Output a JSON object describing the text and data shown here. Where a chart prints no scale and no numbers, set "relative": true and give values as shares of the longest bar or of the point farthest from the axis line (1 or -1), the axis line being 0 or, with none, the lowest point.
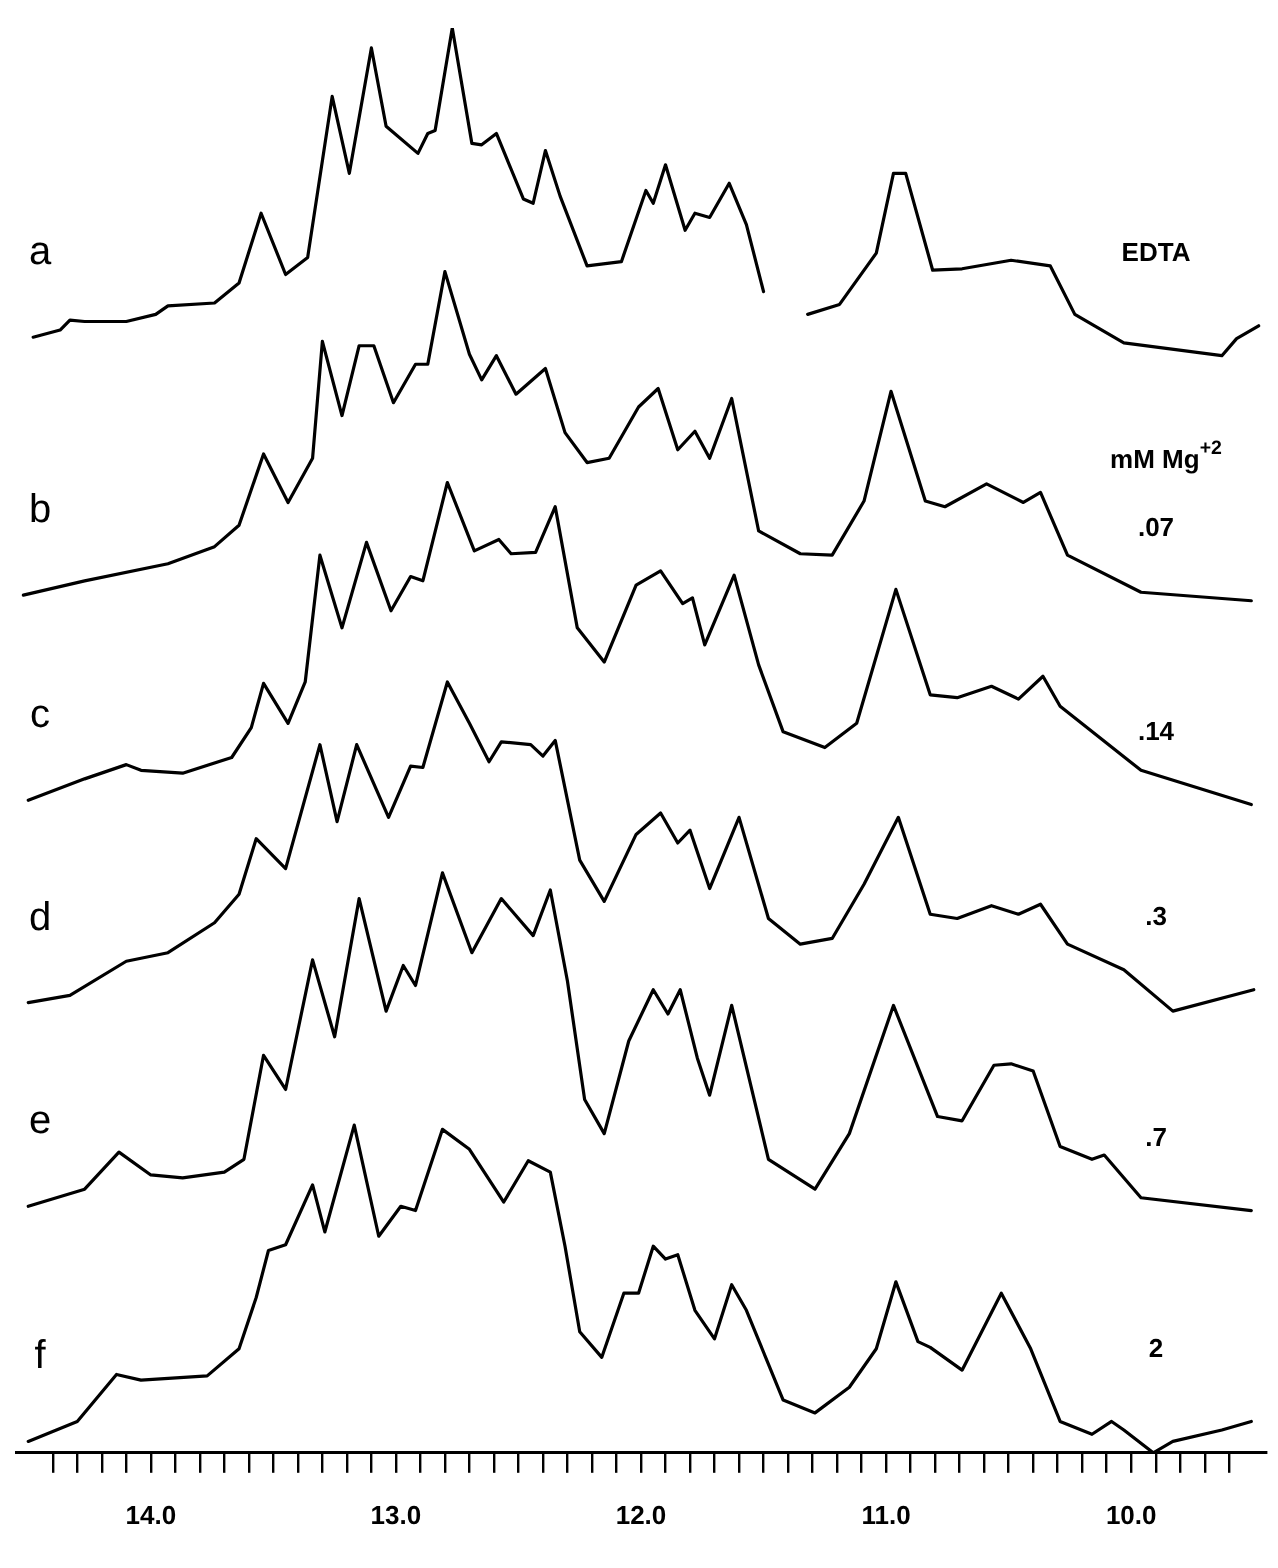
{
  "chart_data": {
    "type": "line",
    "relative": true,
    "legend": false,
    "grid": false,
    "marker": "none",
    "line_style": "solid",
    "tick_labels": "x",
    "xlim": [
      14.55,
      9.45
    ],
    "xticks": [
      {
        "value": 14.4,
        "label": null
      },
      {
        "value": 14.3,
        "label": null
      },
      {
        "value": 14.2,
        "label": null
      },
      {
        "value": 14.1,
        "label": null
      },
      {
        "value": 14,
        "label": "14.0"
      },
      {
        "value": 13.9,
        "label": null
      },
      {
        "value": 13.8,
        "label": null
      },
      {
        "value": 13.7,
        "label": null
      },
      {
        "value": 13.6,
        "label": null
      },
      {
        "value": 13.5,
        "label": null
      },
      {
        "value": 13.4,
        "label": null
      },
      {
        "value": 13.3,
        "label": null
      },
      {
        "value": 13.2,
        "label": null
      },
      {
        "value": 13.1,
        "label": null
      },
      {
        "value": 13,
        "label": "13.0"
      },
      {
        "value": 12.9,
        "label": null
      },
      {
        "value": 12.8,
        "label": null
      },
      {
        "value": 12.7,
        "label": null
      },
      {
        "value": 12.6,
        "label": null
      },
      {
        "value": 12.5,
        "label": null
      },
      {
        "value": 12.4,
        "label": null
      },
      {
        "value": 12.3,
        "label": null
      },
      {
        "value": 12.2,
        "label": null
      },
      {
        "value": 12.1,
        "label": null
      },
      {
        "value": 12,
        "label": "12.0"
      },
      {
        "value": 11.9,
        "label": null
      },
      {
        "value": 11.8,
        "label": null
      },
      {
        "value": 11.7,
        "label": null
      },
      {
        "value": 11.6,
        "label": null
      },
      {
        "value": 11.5,
        "label": null
      },
      {
        "value": 11.4,
        "label": null
      },
      {
        "value": 11.3,
        "label": null
      },
      {
        "value": 11.2,
        "label": null
      },
      {
        "value": 11.1,
        "label": null
      },
      {
        "value": 11,
        "label": "11.0"
      },
      {
        "value": 10.9,
        "label": null
      },
      {
        "value": 10.8,
        "label": null
      },
      {
        "value": 10.7,
        "label": null
      },
      {
        "value": 10.6,
        "label": null
      },
      {
        "value": 10.5,
        "label": null
      },
      {
        "value": 10.4,
        "label": null
      },
      {
        "value": 10.3,
        "label": null
      },
      {
        "value": 10.2,
        "label": null
      },
      {
        "value": 10.1,
        "label": null
      },
      {
        "value": 10,
        "label": "10.0"
      },
      {
        "value": 9.9,
        "label": null
      },
      {
        "value": 9.8,
        "label": null
      },
      {
        "value": 9.7,
        "label": null
      },
      {
        "value": 9.6,
        "label": null
      }
    ],
    "series": [
      {
        "name": "a",
        "color": "#000000",
        "x": [
          14.48,
          14.37,
          14.33,
          14.27,
          14.1,
          13.98,
          13.93,
          13.74,
          13.64,
          13.55,
          13.45,
          13.36,
          13.26,
          13.19,
          13.1,
          13.04,
          12.91,
          12.87,
          12.84,
          12.77,
          12.69,
          12.65,
          12.59,
          12.48,
          12.44,
          12.39,
          12.33,
          12.22,
          12.08,
          11.98,
          11.95,
          11.9,
          11.82,
          11.78,
          11.72,
          11.64,
          11.57,
          11.5,
          11.4,
          11.32,
          11.19,
          11.04,
          10.97,
          10.92,
          10.81,
          10.69,
          10.49,
          10.33,
          10.23,
          10.03,
          9.63,
          9.57,
          9.48
        ],
        "values": [
          0.783,
          0.788,
          0.795,
          0.794,
          0.794,
          0.799,
          0.805,
          0.807,
          0.821,
          0.87,
          0.827,
          0.839,
          0.952,
          0.898,
          0.986,
          0.931,
          0.912,
          0.926,
          0.928,
          1,
          0.919,
          0.918,
          0.926,
          0.88,
          0.877,
          0.914,
          0.882,
          0.833,
          0.836,
          0.886,
          0.877,
          0.904,
          0.858,
          0.87,
          0.867,
          0.891,
          0.862,
          0.815,
          null,
          0.799,
          0.806,
          0.842,
          0.898,
          0.898,
          0.83,
          0.831,
          0.837,
          0.833,
          0.799,
          0.779,
          0.77,
          0.782,
          0.791
        ]
      },
      {
        "name": "b",
        "color": "#000000",
        "x": [
          14.52,
          14.27,
          13.93,
          13.74,
          13.64,
          13.54,
          13.44,
          13.34,
          13.3,
          13.22,
          13.15,
          13.09,
          13.01,
          12.92,
          12.87,
          12.8,
          12.7,
          12.65,
          12.59,
          12.51,
          12.39,
          12.31,
          12.22,
          12.13,
          12.01,
          11.93,
          11.85,
          11.78,
          11.72,
          11.63,
          11.52,
          11.35,
          11.22,
          11.09,
          10.98,
          10.84,
          10.76,
          10.59,
          10.44,
          10.37,
          10.26,
          9.96,
          9.51
        ],
        "values": [
          0.602,
          0.612,
          0.624,
          0.636,
          0.651,
          0.701,
          0.667,
          0.698,
          0.78,
          0.728,
          0.777,
          0.777,
          0.737,
          0.764,
          0.764,
          0.829,
          0.771,
          0.753,
          0.77,
          0.743,
          0.761,
          0.716,
          0.695,
          0.698,
          0.734,
          0.747,
          0.704,
          0.717,
          0.698,
          0.74,
          0.647,
          0.631,
          0.63,
          0.668,
          0.745,
          0.668,
          0.664,
          0.68,
          0.667,
          0.674,
          0.63,
          0.604,
          0.598
        ]
      },
      {
        "name": "c",
        "color": "#000000",
        "x": [
          14.5,
          14.27,
          14.1,
          14.04,
          13.87,
          13.67,
          13.59,
          13.54,
          13.44,
          13.37,
          13.31,
          13.22,
          13.12,
          13.02,
          12.94,
          12.89,
          12.79,
          12.68,
          12.58,
          12.53,
          12.43,
          12.35,
          12.26,
          12.15,
          12.02,
          11.92,
          11.83,
          11.79,
          11.74,
          11.62,
          11.52,
          11.42,
          11.25,
          11.12,
          10.96,
          10.82,
          10.71,
          10.57,
          10.46,
          10.36,
          10.29,
          9.96,
          9.51
        ],
        "values": [
          0.458,
          0.473,
          0.483,
          0.479,
          0.477,
          0.488,
          0.509,
          0.54,
          0.512,
          0.541,
          0.63,
          0.579,
          0.639,
          0.591,
          0.615,
          0.612,
          0.681,
          0.633,
          0.641,
          0.631,
          0.632,
          0.664,
          0.579,
          0.555,
          0.609,
          0.619,
          0.596,
          0.6,
          0.567,
          0.616,
          0.553,
          0.506,
          0.495,
          0.512,
          0.606,
          0.532,
          0.53,
          0.538,
          0.529,
          0.545,
          0.524,
          0.479,
          0.455
        ]
      },
      {
        "name": "d",
        "color": "#000000",
        "x": [
          14.5,
          14.33,
          14.1,
          13.93,
          13.74,
          13.64,
          13.57,
          13.45,
          13.31,
          13.24,
          13.16,
          13.03,
          12.94,
          12.89,
          12.79,
          12.7,
          12.62,
          12.57,
          12.45,
          12.4,
          12.35,
          12.25,
          12.15,
          12.02,
          11.92,
          11.85,
          11.8,
          11.72,
          11.6,
          11.48,
          11.35,
          11.22,
          11.09,
          10.95,
          10.82,
          10.71,
          10.57,
          10.46,
          10.37,
          10.26,
          10.03,
          9.83,
          9.5
        ],
        "values": [
          0.316,
          0.321,
          0.345,
          0.351,
          0.372,
          0.392,
          0.431,
          0.41,
          0.497,
          0.443,
          0.497,
          0.446,
          0.482,
          0.481,
          0.541,
          0.512,
          0.485,
          0.499,
          0.497,
          0.489,
          0.5,
          0.416,
          0.387,
          0.434,
          0.449,
          0.428,
          0.437,
          0.396,
          0.446,
          0.375,
          0.357,
          0.361,
          0.399,
          0.446,
          0.378,
          0.375,
          0.384,
          0.378,
          0.385,
          0.357,
          0.339,
          0.31,
          0.325
        ]
      },
      {
        "name": "e",
        "color": "#000000",
        "x": [
          14.5,
          14.27,
          14.13,
          14.0,
          13.87,
          13.7,
          13.62,
          13.54,
          13.45,
          13.34,
          13.25,
          13.15,
          13.04,
          12.97,
          12.92,
          12.81,
          12.69,
          12.57,
          12.44,
          12.37,
          12.3,
          12.23,
          12.15,
          12.05,
          11.95,
          11.89,
          11.84,
          11.77,
          11.72,
          11.63,
          11.48,
          11.29,
          11.15,
          10.97,
          10.79,
          10.69,
          10.56,
          10.49,
          10.4,
          10.29,
          10.16,
          10.11,
          9.96,
          9.51
        ],
        "values": [
          0.173,
          0.185,
          0.211,
          0.195,
          0.193,
          0.197,
          0.206,
          0.279,
          0.255,
          0.346,
          0.292,
          0.389,
          0.31,
          0.342,
          0.328,
          0.407,
          0.351,
          0.389,
          0.363,
          0.395,
          0.331,
          0.248,
          0.224,
          0.289,
          0.325,
          0.308,
          0.325,
          0.277,
          0.251,
          0.314,
          0.206,
          0.185,
          0.224,
          0.314,
          0.236,
          0.233,
          0.272,
          0.273,
          0.268,
          0.215,
          0.206,
          0.209,
          0.179,
          0.17
        ]
      },
      {
        "name": "f",
        "color": "#000000",
        "x": [
          14.5,
          14.3,
          14.14,
          14.04,
          13.77,
          13.64,
          13.57,
          13.52,
          13.45,
          13.34,
          13.29,
          13.17,
          13.07,
          12.98,
          12.92,
          12.81,
          12.7,
          12.56,
          12.46,
          12.37,
          12.31,
          12.25,
          12.16,
          12.07,
          12.01,
          11.95,
          11.9,
          11.85,
          11.78,
          11.7,
          11.63,
          11.57,
          11.42,
          11.29,
          11.15,
          11.04,
          10.96,
          10.87,
          10.82,
          10.69,
          10.53,
          10.41,
          10.29,
          10.16,
          10.08,
          10.03,
          9.91,
          9.83,
          9.63,
          9.51
        ],
        "values": [
          0.008,
          0.022,
          0.055,
          0.051,
          0.054,
          0.073,
          0.109,
          0.142,
          0.146,
          0.188,
          0.155,
          0.23,
          0.152,
          0.173,
          0.17,
          0.227,
          0.213,
          0.176,
          0.205,
          0.197,
          0.145,
          0.085,
          0.067,
          0.112,
          0.112,
          0.145,
          0.136,
          0.139,
          0.1,
          0.08,
          0.118,
          0.1,
          0.037,
          0.028,
          0.046,
          0.073,
          0.12,
          0.078,
          0.074,
          0.058,
          0.112,
          0.073,
          0.022,
          0.013,
          0.022,
          0.016,
          0,
          0.008,
          0.016,
          0.022
        ]
      }
    ],
    "legend_title": "mM Mg$^{+2}$",
    "annotations": [
      "EDTA",
      ".07",
      ".14",
      ".3",
      ".7",
      "2"
    ]
  }
}
